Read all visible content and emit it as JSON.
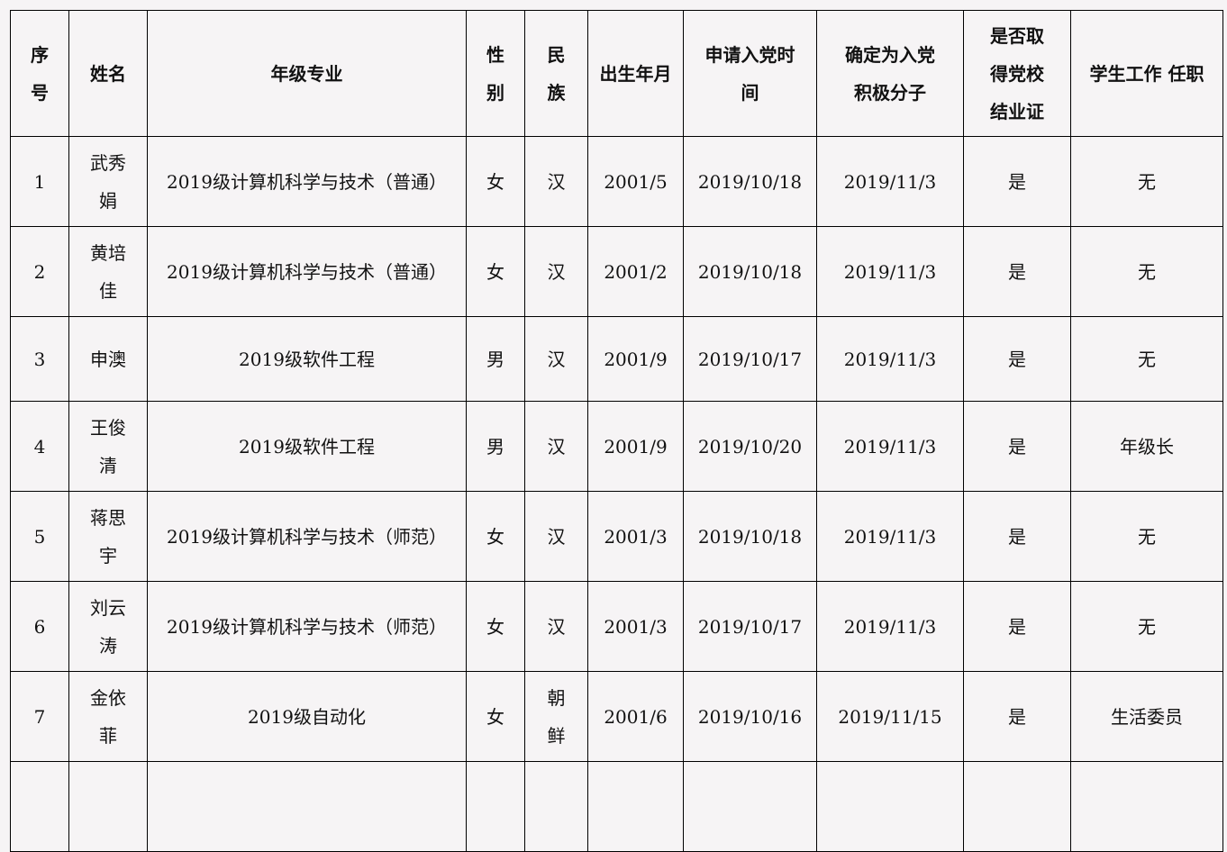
{
  "table": {
    "headers": [
      "序号",
      "姓名",
      "年级专业",
      "性别",
      "民族",
      "出生年月",
      "申请入党时间",
      "确定为入党积极分子",
      "是否取得党校结业证",
      "学生工作 任职"
    ],
    "rows": [
      [
        "1",
        "武秀娟",
        "2019级计算机科学与技术（普通）",
        "女",
        "汉",
        "2001/5",
        "2019/10/18",
        "2019/11/3",
        "是",
        "无"
      ],
      [
        "2",
        "黄培佳",
        "2019级计算机科学与技术（普通）",
        "女",
        "汉",
        "2001/2",
        "2019/10/18",
        "2019/11/3",
        "是",
        "无"
      ],
      [
        "3",
        "申澳",
        "2019级软件工程",
        "男",
        "汉",
        "2001/9",
        "2019/10/17",
        "2019/11/3",
        "是",
        "无"
      ],
      [
        "4",
        "王俊清",
        "2019级软件工程",
        "男",
        "汉",
        "2001/9",
        "2019/10/20",
        "2019/11/3",
        "是",
        "年级长"
      ],
      [
        "5",
        "蒋思宇",
        "2019级计算机科学与技术（师范）",
        "女",
        "汉",
        "2001/3",
        "2019/10/18",
        "2019/11/3",
        "是",
        "无"
      ],
      [
        "6",
        "刘云涛",
        "2019级计算机科学与技术（师范）",
        "女",
        "汉",
        "2001/3",
        "2019/10/17",
        "2019/11/3",
        "是",
        "无"
      ],
      [
        "7",
        "金依菲",
        "2019级自动化",
        "女",
        "朝鲜",
        "2001/6",
        "2019/10/16",
        "2019/11/15",
        "是",
        "生活委员"
      ]
    ]
  }
}
